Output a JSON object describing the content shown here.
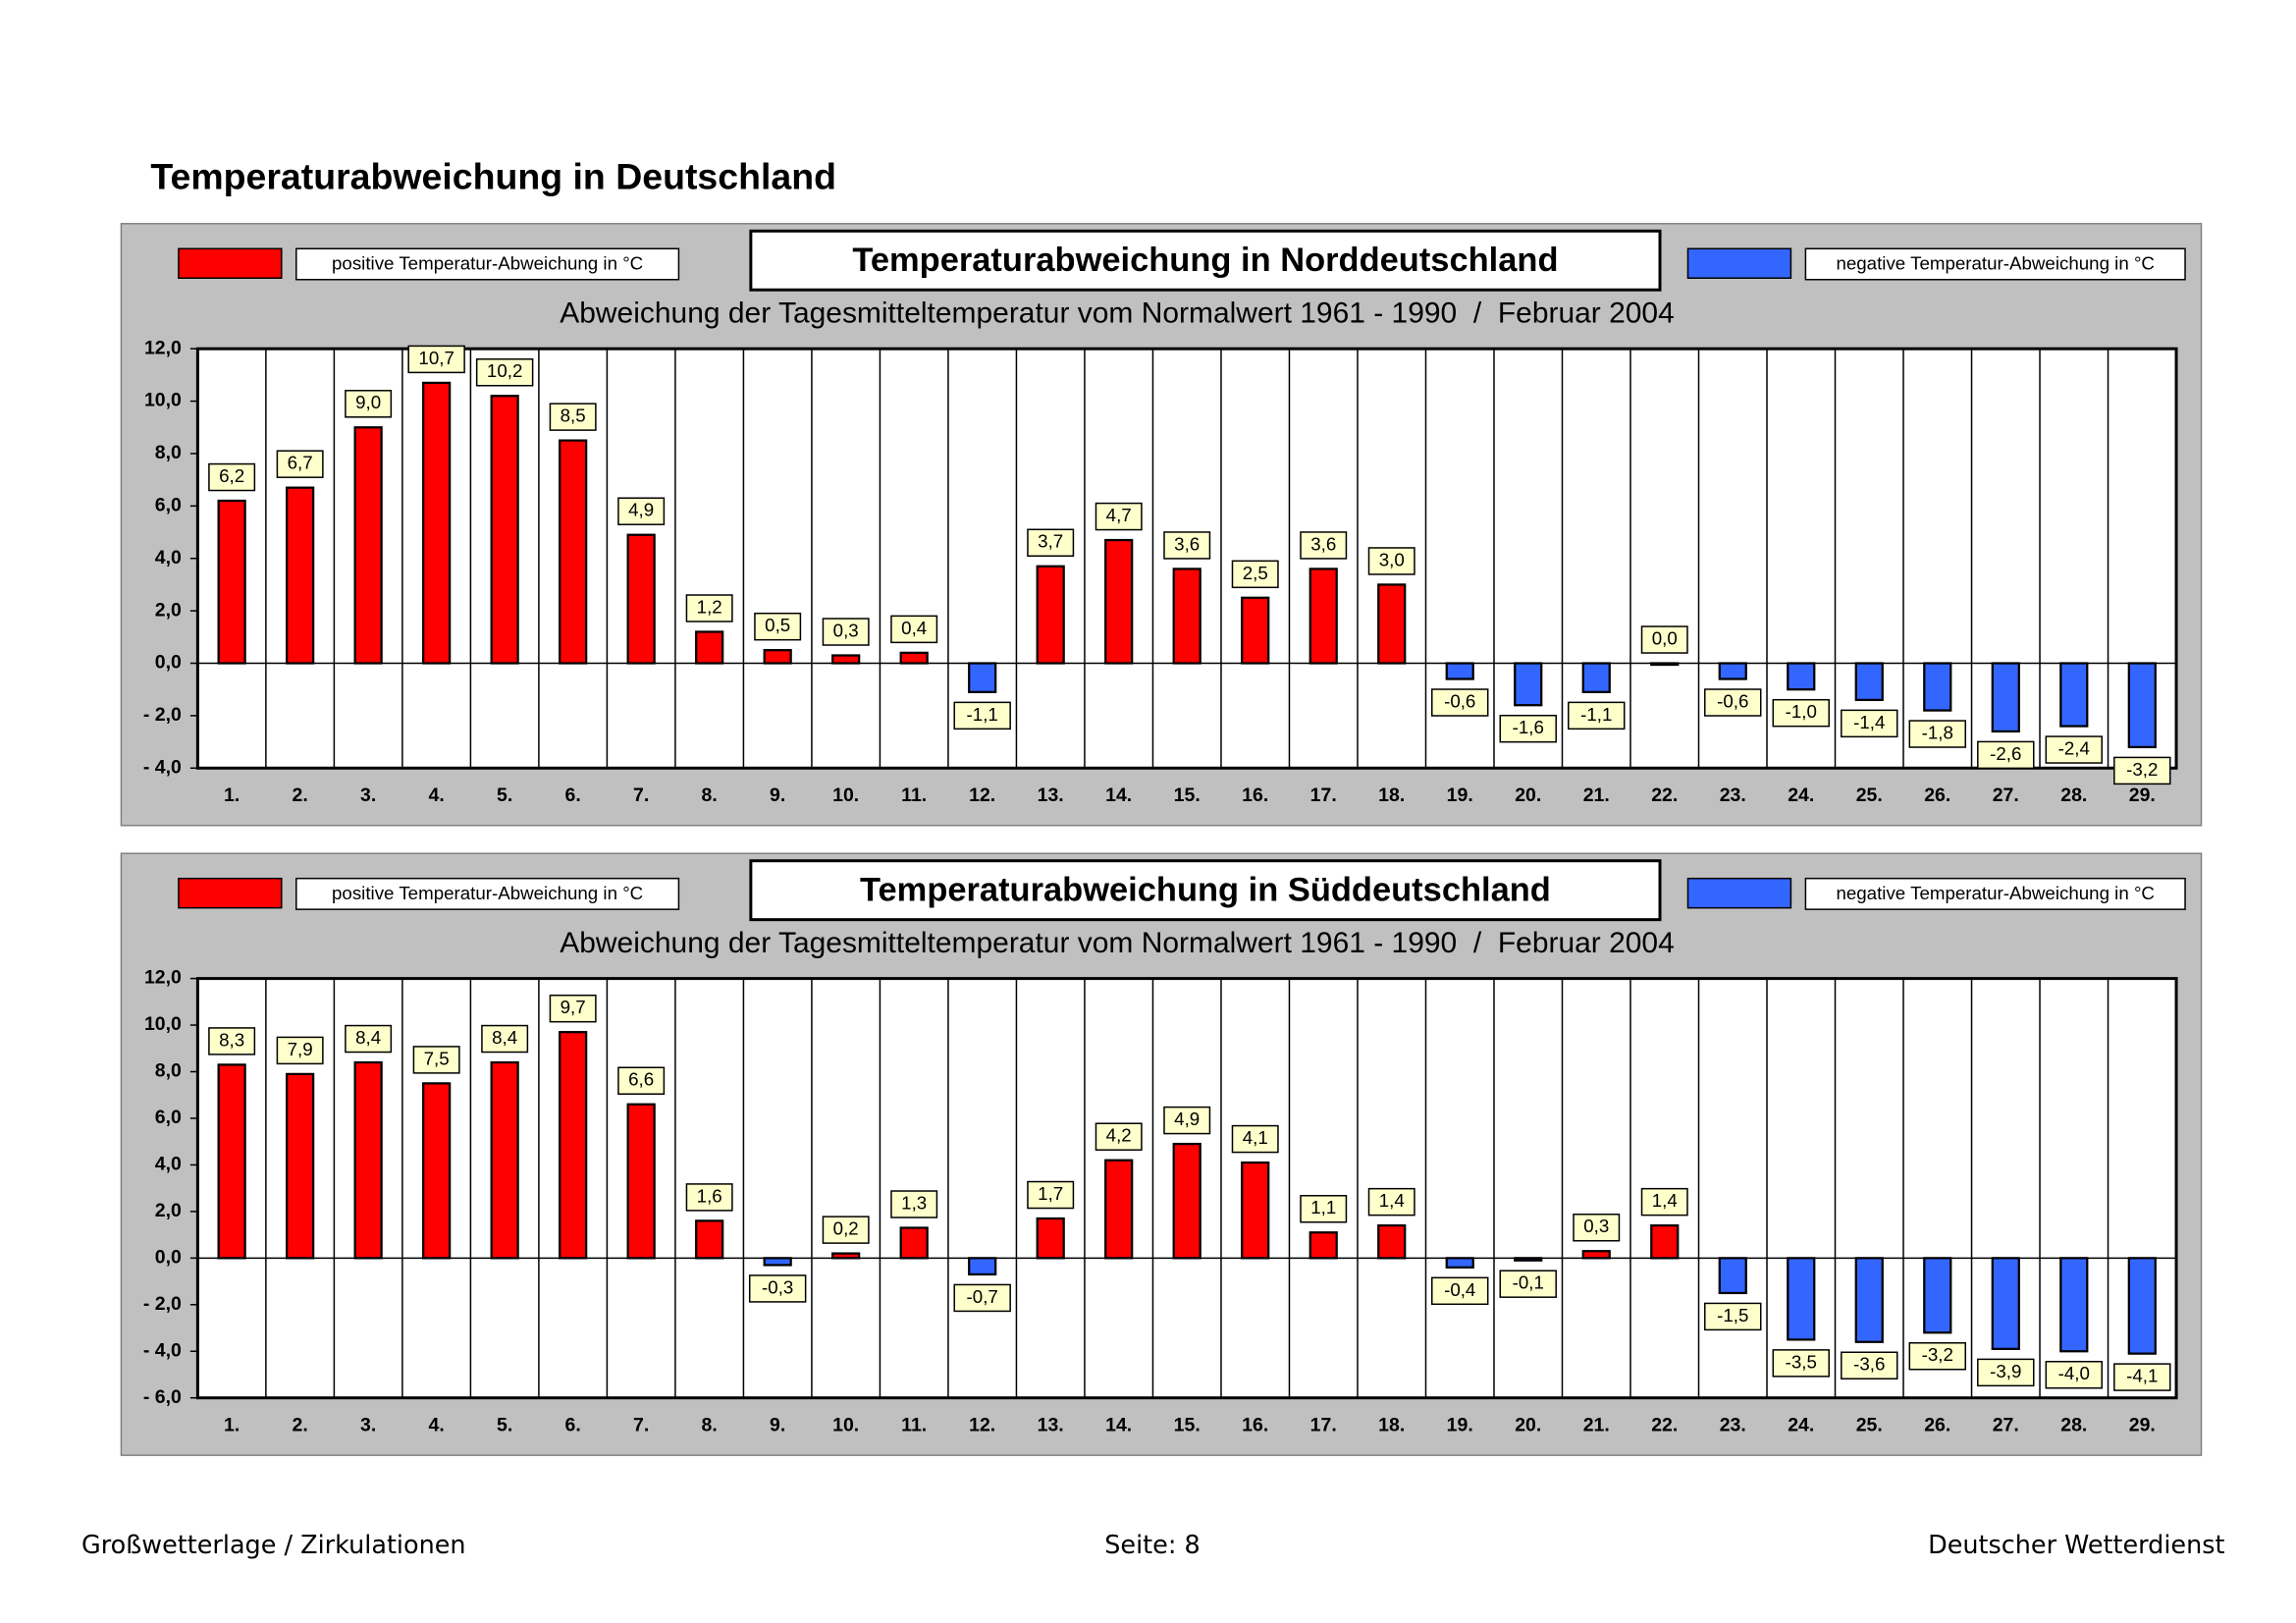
{
  "header": {
    "title": "Temperaturabweichung in Deutschland"
  },
  "chart_data": [
    {
      "type": "bar",
      "title": "Temperaturabweichung in Norddeutschland",
      "subtitle": "Abweichung der Tagesmitteltemperatur vom Normalwert 1961 - 1990  /  Februar 2004",
      "legend": [
        {
          "label": "positive Temperatur-Abweichung in °C",
          "color": "#ff0000"
        },
        {
          "label": "negative Temperatur-Abweichung in °C",
          "color": "#3366ff"
        }
      ],
      "categories": [
        "1.",
        "2.",
        "3.",
        "4.",
        "5.",
        "6.",
        "7.",
        "8.",
        "9.",
        "10.",
        "11.",
        "12.",
        "13.",
        "14.",
        "15.",
        "16.",
        "17.",
        "18.",
        "19.",
        "20.",
        "21.",
        "22.",
        "23.",
        "24.",
        "25.",
        "26.",
        "27.",
        "28.",
        "29."
      ],
      "values": [
        6.2,
        6.7,
        9.0,
        10.7,
        10.2,
        8.5,
        4.9,
        1.2,
        0.5,
        0.3,
        0.4,
        -1.1,
        3.7,
        4.7,
        3.6,
        2.5,
        3.6,
        3.0,
        -0.6,
        -1.6,
        -1.1,
        0.0,
        -0.6,
        -1.0,
        -1.4,
        -1.8,
        -2.6,
        -2.4,
        -3.2
      ],
      "value_labels": [
        "6,2",
        "6,7",
        "9,0",
        "10,7",
        "10,2",
        "8,5",
        "4,9",
        "1,2",
        "0,5",
        "0,3",
        "0,4",
        "-1,1",
        "3,7",
        "4,7",
        "3,6",
        "2,5",
        "3,6",
        "3,0",
        "-0,6",
        "-1,6",
        "-1,1",
        "0,0",
        "-0,6",
        "-1,0",
        "-1,4",
        "-1,8",
        "-2,6",
        "-2,4",
        "-3,2"
      ],
      "ylim": [
        -4,
        12
      ],
      "yticks": [
        {
          "value": -4,
          "label": "- 4,0"
        },
        {
          "value": -2,
          "label": "- 2,0"
        },
        {
          "value": 0,
          "label": "0,0"
        },
        {
          "value": 2,
          "label": "2,0"
        },
        {
          "value": 4,
          "label": "4,0"
        },
        {
          "value": 6,
          "label": "6,0"
        },
        {
          "value": 8,
          "label": "8,0"
        },
        {
          "value": 10,
          "label": "10,0"
        },
        {
          "value": 12,
          "label": "12,0"
        }
      ]
    },
    {
      "type": "bar",
      "title": "Temperaturabweichung in Süddeutschland",
      "subtitle": "Abweichung der Tagesmitteltemperatur vom Normalwert 1961 - 1990  /  Februar 2004",
      "legend": [
        {
          "label": "positive Temperatur-Abweichung in °C",
          "color": "#ff0000"
        },
        {
          "label": "negative Temperatur-Abweichung in °C",
          "color": "#3366ff"
        }
      ],
      "categories": [
        "1.",
        "2.",
        "3.",
        "4.",
        "5.",
        "6.",
        "7.",
        "8.",
        "9.",
        "10.",
        "11.",
        "12.",
        "13.",
        "14.",
        "15.",
        "16.",
        "17.",
        "18.",
        "19.",
        "20.",
        "21.",
        "22.",
        "23.",
        "24.",
        "25.",
        "26.",
        "27.",
        "28.",
        "29."
      ],
      "values": [
        8.3,
        7.9,
        8.4,
        7.5,
        8.4,
        9.7,
        6.6,
        1.6,
        -0.3,
        0.2,
        1.3,
        -0.7,
        1.7,
        4.2,
        4.9,
        4.1,
        1.1,
        1.4,
        -0.4,
        -0.1,
        0.3,
        1.4,
        -1.5,
        -3.5,
        -3.6,
        -3.2,
        -3.9,
        -4.0,
        -4.1
      ],
      "value_labels": [
        "8,3",
        "7,9",
        "8,4",
        "7,5",
        "8,4",
        "9,7",
        "6,6",
        "1,6",
        "-0,3",
        "0,2",
        "1,3",
        "-0,7",
        "1,7",
        "4,2",
        "4,9",
        "4,1",
        "1,1",
        "1,4",
        "-0,4",
        "-0,1",
        "0,3",
        "1,4",
        "-1,5",
        "-3,5",
        "-3,6",
        "-3,2",
        "-3,9",
        "-4,0",
        "-4,1"
      ],
      "ylim": [
        -6,
        12
      ],
      "yticks": [
        {
          "value": -6,
          "label": "- 6,0"
        },
        {
          "value": -4,
          "label": "- 4,0"
        },
        {
          "value": -2,
          "label": "- 2,0"
        },
        {
          "value": 0,
          "label": "0,0"
        },
        {
          "value": 2,
          "label": "2,0"
        },
        {
          "value": 4,
          "label": "4,0"
        },
        {
          "value": 6,
          "label": "6,0"
        },
        {
          "value": 8,
          "label": "8,0"
        },
        {
          "value": 10,
          "label": "10,0"
        },
        {
          "value": 12,
          "label": "12,0"
        }
      ]
    }
  ],
  "footer": {
    "left": "Großwetterlage / Zirkulationen",
    "center": "Seite: 8",
    "right": "Deutscher Wetterdienst"
  }
}
